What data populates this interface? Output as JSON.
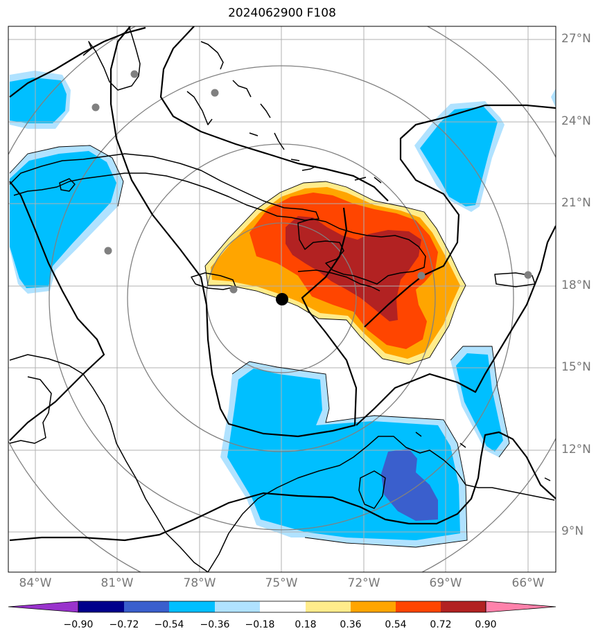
{
  "title": "2024062900 F108",
  "latitude_labels": [
    "27°N",
    "24°N",
    "21°N",
    "18°N",
    "15°N",
    "12°N",
    "9°N"
  ],
  "longitude_labels": [
    "84°W",
    "81°W",
    "78°W",
    "75°W",
    "72°W",
    "69°W",
    "66°W"
  ],
  "colorbar": {
    "labels": [
      "−0.90",
      "−0.72",
      "−0.54",
      "−0.36",
      "−0.18",
      "0.18",
      "0.36",
      "0.54",
      "0.72",
      "0.90"
    ],
    "colors": [
      "#9933cc",
      "#00008b",
      "#3a5fcd",
      "#00bfff",
      "#b0e2ff",
      "#ffffff",
      "#ffec8b",
      "#ffa500",
      "#ff4500",
      "#b22222",
      "#ff82ab"
    ]
  },
  "map": {
    "center_lat": 17.6,
    "center_lon": -74.9,
    "extent": {
      "lon_min": -85,
      "lon_max": -65,
      "lat_min": 7.5,
      "lat_max": 27.5
    },
    "colors": {
      "pos_0_18": "#ffec8b",
      "pos_0_36": "#ffa500",
      "pos_0_54": "#ff4500",
      "pos_0_72": "#b22222",
      "neg_0_18": "#b0e2ff",
      "neg_0_36": "#00bfff",
      "neg_0_54": "#3a5fcd",
      "range_rings": "#808080",
      "gridlines": "#b0b0b0",
      "coastlines": "#000000",
      "station_dots": "#808080"
    }
  }
}
